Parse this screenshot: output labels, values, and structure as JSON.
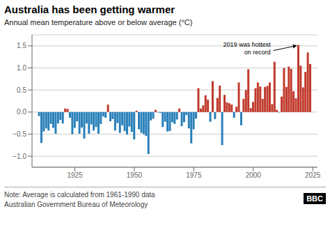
{
  "chart_data": {
    "type": "bar",
    "title": "Australia has been getting warmer",
    "subtitle": "Annual mean temperature above or below average (°C)",
    "note": "Note: Average is calculated from 1961-1990 data",
    "source": "Australian Government Bureau of Meteorology",
    "credit": "BBC",
    "annotations": [
      {
        "text": "2019 was hottest\non record",
        "x": 2019,
        "y": 1.52
      }
    ],
    "x": [
      1910,
      1911,
      1912,
      1913,
      1914,
      1915,
      1916,
      1917,
      1918,
      1919,
      1920,
      1921,
      1922,
      1923,
      1924,
      1925,
      1926,
      1927,
      1928,
      1929,
      1930,
      1931,
      1932,
      1933,
      1934,
      1935,
      1936,
      1937,
      1938,
      1939,
      1940,
      1941,
      1942,
      1943,
      1944,
      1945,
      1946,
      1947,
      1948,
      1949,
      1950,
      1951,
      1952,
      1953,
      1954,
      1955,
      1956,
      1957,
      1958,
      1959,
      1960,
      1961,
      1962,
      1963,
      1964,
      1965,
      1966,
      1967,
      1968,
      1969,
      1970,
      1971,
      1972,
      1973,
      1974,
      1975,
      1976,
      1977,
      1978,
      1979,
      1980,
      1981,
      1982,
      1983,
      1984,
      1985,
      1986,
      1987,
      1988,
      1989,
      1990,
      1991,
      1992,
      1993,
      1994,
      1995,
      1996,
      1997,
      1998,
      1999,
      2000,
      2001,
      2002,
      2003,
      2004,
      2005,
      2006,
      2007,
      2008,
      2009,
      2010,
      2011,
      2012,
      2013,
      2014,
      2015,
      2016,
      2017,
      2018,
      2019,
      2020,
      2021,
      2022,
      2023,
      2024
    ],
    "values": [
      -0.09,
      -0.7,
      -0.44,
      -0.37,
      -0.42,
      -0.27,
      -0.36,
      -0.49,
      -0.26,
      -0.18,
      -0.26,
      0.08,
      0.07,
      -0.13,
      -0.5,
      -0.36,
      -0.21,
      -0.49,
      -0.35,
      -0.6,
      -0.26,
      -0.49,
      -0.28,
      -0.42,
      -0.34,
      -0.49,
      -0.27,
      -0.1,
      -0.13,
      0.17,
      -0.21,
      -0.16,
      -0.42,
      -0.25,
      -0.47,
      -0.3,
      -0.43,
      -0.51,
      -0.33,
      -0.45,
      -0.62,
      0.03,
      -0.39,
      -0.47,
      -0.5,
      -0.54,
      -0.95,
      -0.19,
      -0.15,
      0.05,
      -0.01,
      -0.02,
      -0.34,
      -0.22,
      -0.44,
      -0.43,
      -0.23,
      -0.27,
      -0.17,
      0.08,
      -0.32,
      -0.23,
      -0.07,
      -0.37,
      -0.71,
      -0.39,
      -0.15,
      0.54,
      0.08,
      0.15,
      0.38,
      0.28,
      -0.22,
      0.7,
      -0.16,
      0.32,
      0.6,
      -0.75,
      0.39,
      0.22,
      0.2,
      0.17,
      -0.13,
      0.12,
      0.67,
      -0.3,
      0.3,
      0.5,
      0.97,
      0.09,
      0.23,
      0.54,
      0.67,
      0.58,
      0.3,
      0.57,
      0.59,
      0.67,
      0.18,
      1.14,
      0.05,
      -0.01,
      0.35,
      1.0,
      0.57,
      1.03,
      0.98,
      0.47,
      0.31,
      1.52,
      1.05,
      0.56,
      0.91,
      1.35,
      1.09
    ],
    "colors": [
      "#2980b9",
      "#2980b9",
      "#2980b9",
      "#2980b9",
      "#2980b9",
      "#2980b9",
      "#2980b9",
      "#2980b9",
      "#2980b9",
      "#2980b9",
      "#2980b9",
      "#c0392b",
      "#c0392b",
      "#2980b9",
      "#2980b9",
      "#2980b9",
      "#2980b9",
      "#2980b9",
      "#2980b9",
      "#2980b9",
      "#2980b9",
      "#2980b9",
      "#2980b9",
      "#2980b9",
      "#2980b9",
      "#2980b9",
      "#2980b9",
      "#2980b9",
      "#2980b9",
      "#c0392b",
      "#2980b9",
      "#2980b9",
      "#2980b9",
      "#2980b9",
      "#2980b9",
      "#2980b9",
      "#2980b9",
      "#2980b9",
      "#2980b9",
      "#2980b9",
      "#2980b9",
      "#c0392b",
      "#2980b9",
      "#2980b9",
      "#2980b9",
      "#2980b9",
      "#2980b9",
      "#2980b9",
      "#2980b9",
      "#c0392b",
      "#2980b9",
      "#2980b9",
      "#2980b9",
      "#2980b9",
      "#2980b9",
      "#2980b9",
      "#2980b9",
      "#2980b9",
      "#2980b9",
      "#c0392b",
      "#2980b9",
      "#2980b9",
      "#2980b9",
      "#2980b9",
      "#2980b9",
      "#2980b9",
      "#2980b9",
      "#c0392b",
      "#c0392b",
      "#c0392b",
      "#c0392b",
      "#c0392b",
      "#2980b9",
      "#c0392b",
      "#2980b9",
      "#c0392b",
      "#c0392b",
      "#2980b9",
      "#c0392b",
      "#c0392b",
      "#c0392b",
      "#c0392b",
      "#2980b9",
      "#c0392b",
      "#c0392b",
      "#2980b9",
      "#c0392b",
      "#c0392b",
      "#c0392b",
      "#c0392b",
      "#c0392b",
      "#c0392b",
      "#c0392b",
      "#c0392b",
      "#c0392b",
      "#c0392b",
      "#c0392b",
      "#c0392b",
      "#c0392b",
      "#c0392b",
      "#c0392b",
      "#2980b9",
      "#c0392b",
      "#c0392b",
      "#c0392b",
      "#c0392b",
      "#c0392b",
      "#c0392b",
      "#c0392b",
      "#c0392b",
      "#c0392b",
      "#c0392b",
      "#c0392b",
      "#c0392b",
      "#c0392b"
    ],
    "xlim": [
      1907,
      2027
    ],
    "xticks": [
      1925,
      1950,
      1975,
      2000,
      2025
    ],
    "ylim": [
      -1.25,
      1.75
    ],
    "yticks": [
      {
        "value": -1.0,
        "label": "−1.0"
      },
      {
        "value": -0.5,
        "label": "−0.5"
      },
      {
        "value": 0,
        "label": "0.0"
      },
      0.5,
      {
        "value": 1,
        "label": "1.0"
      },
      1.5
    ],
    "grid": true
  }
}
